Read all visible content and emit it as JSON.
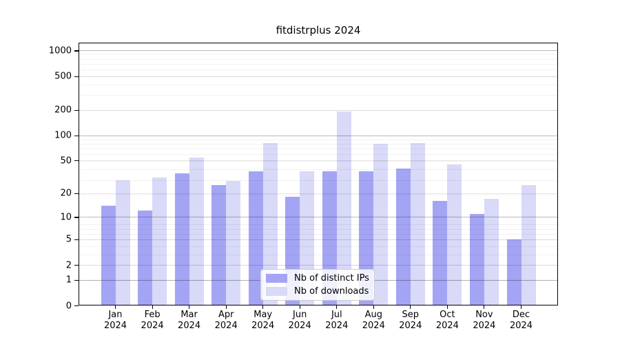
{
  "title": "fitdistrplus 2024",
  "colors": {
    "ips_bar": "#a4a4f4",
    "downloads_bar": "#d9d9f8",
    "axis": "#000000",
    "legend_border": "#cccccc"
  },
  "legend": {
    "position": "bottom-center"
  },
  "chart_data": {
    "type": "bar",
    "title": "fitdistrplus 2024",
    "xlabel": "",
    "ylabel": "",
    "yscale": "log1p",
    "ylim": [
      0,
      1200
    ],
    "grid": "on",
    "legend_position": "lower center",
    "categories": [
      "Jan",
      "Feb",
      "Mar",
      "Apr",
      "May",
      "Jun",
      "Jul",
      "Aug",
      "Sep",
      "Oct",
      "Nov",
      "Dec"
    ],
    "category_year": "2024",
    "yticks": [
      0,
      1,
      2,
      5,
      10,
      20,
      50,
      100,
      200,
      500,
      1000
    ],
    "series": [
      {
        "name": "Nb of distinct IPs",
        "key": "ips",
        "values": [
          14,
          12,
          35,
          25,
          37,
          18,
          37,
          37,
          40,
          16,
          11,
          5
        ]
      },
      {
        "name": "Nb of downloads",
        "key": "downloads",
        "values": [
          29,
          31,
          54,
          28,
          81,
          37,
          190,
          79,
          81,
          45,
          17,
          25
        ]
      }
    ]
  }
}
